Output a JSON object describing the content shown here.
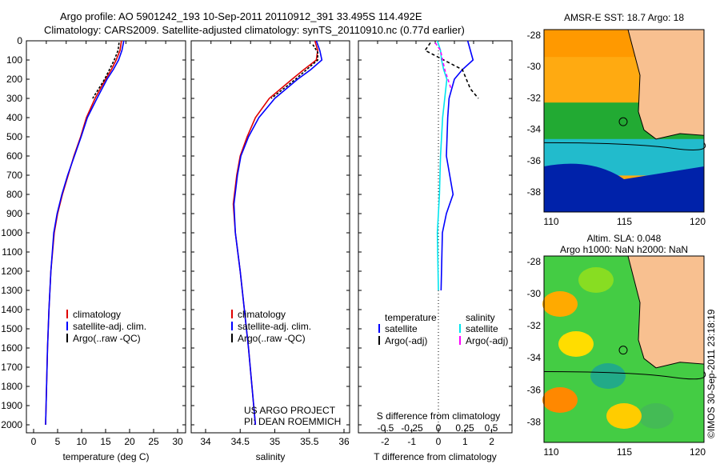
{
  "title_line1": "Argo profile: AO 5901242_193 10-Sep-2011 20110912_391 33.495S 114.492E",
  "title_line2": "Climatology: CARS2009. Satellite-adjusted climatology: synTS_20110910.nc (0.77d earlier)",
  "colors": {
    "climatology": "#e00000",
    "satellite": "#0000ff",
    "argo": "#000000",
    "sal_sat": "#00e5ee",
    "sal_argo": "#ff00ff"
  },
  "chart_data": [
    {
      "type": "line",
      "xlabel": "temperature (deg C)",
      "xlim": [
        -1,
        31
      ],
      "xticks": [
        "0",
        "5",
        "10",
        "15",
        "20",
        "25",
        "30"
      ],
      "ylim": [
        0,
        2000
      ],
      "yticks": [
        "0",
        "100",
        "200",
        "300",
        "400",
        "500",
        "600",
        "700",
        "800",
        "900",
        "1000",
        "1100",
        "1200",
        "1300",
        "1400",
        "1500",
        "1600",
        "1700",
        "1800",
        "1900",
        "2000"
      ],
      "legend": [
        "climatology",
        "satellite-adj. clim.",
        "Argo(..raw -QC)"
      ],
      "depth": [
        0,
        50,
        100,
        150,
        200,
        300,
        400,
        500,
        600,
        700,
        800,
        900,
        1000,
        1200,
        1400,
        1600,
        1800,
        2000
      ],
      "series": [
        {
          "name": "climatology",
          "values": [
            18.3,
            18,
            17.2,
            16.2,
            15,
            12.8,
            11,
            9.8,
            8.4,
            7.2,
            6,
            5,
            4.3,
            3.6,
            3.2,
            2.9,
            2.7,
            2.5
          ]
        },
        {
          "name": "satellite-adj. clim.",
          "values": [
            18.8,
            18.4,
            17.7,
            16.6,
            15.3,
            13.2,
            11.2,
            9.9,
            8.5,
            7.1,
            5.9,
            4.9,
            4.2,
            3.6,
            3.2,
            2.9,
            2.7,
            2.5
          ]
        },
        {
          "name": "Argo",
          "depth": [
            10,
            50,
            100,
            200,
            300
          ],
          "values": [
            17.8,
            17.6,
            16.8,
            14.8,
            12.3
          ]
        }
      ]
    },
    {
      "type": "line",
      "xlabel": "salinity",
      "xlim": [
        33.8,
        36.3
      ],
      "xticks": [
        "34",
        "34.5",
        "35",
        "35.5",
        "36"
      ],
      "legend": [
        "climatology",
        "satellite-adj. clim.",
        "Argo(..raw -QC)"
      ],
      "annotation": [
        "US ARGO PROJECT",
        "PI: DEAN ROEMMICH"
      ],
      "depth": [
        0,
        50,
        100,
        150,
        200,
        300,
        400,
        500,
        600,
        700,
        850,
        1000,
        1200,
        1400,
        1600,
        1800,
        2000
      ],
      "series": [
        {
          "name": "climatology",
          "values": [
            35.58,
            35.62,
            35.6,
            35.42,
            35.25,
            34.92,
            34.72,
            34.6,
            34.5,
            34.45,
            34.4,
            34.43,
            34.5,
            34.56,
            34.62,
            34.67,
            34.72
          ]
        },
        {
          "name": "satellite-adj. clim.",
          "values": [
            35.6,
            35.65,
            35.68,
            35.52,
            35.33,
            35,
            34.77,
            34.62,
            34.51,
            34.46,
            34.41,
            34.43,
            34.5,
            34.56,
            34.62,
            34.67,
            34.72
          ]
        },
        {
          "name": "Argo",
          "depth": [
            20,
            60,
            100,
            200,
            300
          ],
          "values": [
            35.55,
            35.62,
            35.62,
            35.3,
            34.95
          ]
        }
      ]
    },
    {
      "type": "line",
      "xlabel": "T difference from climatology",
      "x2label": "S difference from climatology",
      "xlim": [
        -3,
        3
      ],
      "xticks": [
        "-2",
        "-1",
        "0",
        "1",
        "2"
      ],
      "x2ticks": [
        "-0.5",
        "-0.25",
        "0",
        "0.25",
        "0.5"
      ],
      "legend_title_t": "temperature",
      "legend_title_s": "salinity",
      "legend": [
        "satellite",
        "Argo(-adj)",
        "satellite",
        "Argo(-adj)"
      ],
      "depth": [
        0,
        50,
        100,
        150,
        200,
        300,
        400,
        600,
        800,
        900,
        1000,
        1300
      ],
      "series": [
        {
          "name": "T satellite",
          "values": [
            1.1,
            1.2,
            1.3,
            0.9,
            0.6,
            0.4,
            0.35,
            0.3,
            0.55,
            0.3,
            0.15,
            0.1
          ]
        },
        {
          "name": "S satellite",
          "values": [
            -0.01,
            0.02,
            0.03,
            0.05,
            0.08,
            0.06,
            0.04,
            0.02,
            0.01,
            0,
            -0.01,
            0
          ]
        },
        {
          "name": "T Argo",
          "depth": [
            10,
            50,
            150,
            250,
            300
          ],
          "values": [
            -0.3,
            -0.5,
            0.9,
            1.2,
            1.5
          ]
        },
        {
          "name": "S Argo",
          "depth": [
            10,
            50,
            150,
            250
          ],
          "values": [
            -0.03,
            0.02,
            0.06,
            0.12
          ]
        }
      ]
    }
  ],
  "map1": {
    "title": "AMSR-E SST: 18.7 Argo: 18",
    "yticks": [
      "-28",
      "-30",
      "-32",
      "-34",
      "-36",
      "-38"
    ],
    "xticks": [
      "110",
      "115",
      "120"
    ]
  },
  "map2": {
    "title1": "Altim. SLA: 0.048",
    "title2": "Argo h1000: NaN h2000: NaN",
    "yticks": [
      "-28",
      "-30",
      "-32",
      "-34",
      "-36",
      "-38"
    ],
    "xticks": [
      "110",
      "115",
      "120"
    ]
  },
  "credit": "©IMOS 30-Sep-2011 23:18:19"
}
